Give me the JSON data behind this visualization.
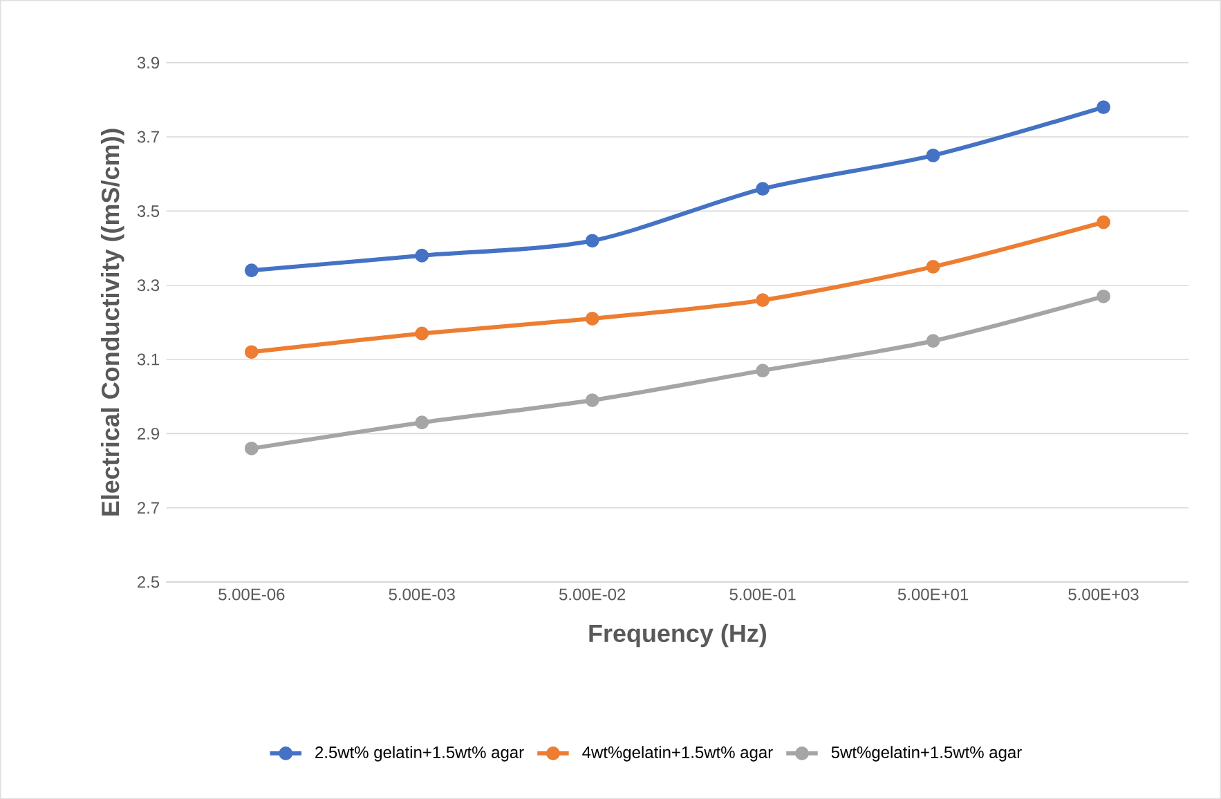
{
  "chart_data": {
    "type": "line",
    "xlabel": "Frequency (Hz)",
    "ylabel": "Electrical Conductivity ((mS/cm))",
    "categories": [
      "5.00E-06",
      "5.00E-03",
      "5.00E-02",
      "5.00E-01",
      "5.00E+01",
      "5.00E+03"
    ],
    "series": [
      {
        "name": "2.5wt% gelatin+1.5wt% agar",
        "color": "#4472c4",
        "values": [
          3.34,
          3.38,
          3.42,
          3.56,
          3.65,
          3.78
        ]
      },
      {
        "name": "4wt%gelatin+1.5wt% agar",
        "color": "#ed7d31",
        "values": [
          3.12,
          3.17,
          3.21,
          3.26,
          3.35,
          3.47
        ]
      },
      {
        "name": "5wt%gelatin+1.5wt% agar",
        "color": "#a5a5a5",
        "values": [
          2.86,
          2.93,
          2.99,
          3.07,
          3.15,
          3.27
        ]
      }
    ],
    "ylim": [
      2.5,
      3.9
    ],
    "yticks": [
      2.5,
      2.7,
      2.9,
      3.1,
      3.3,
      3.5,
      3.7,
      3.9
    ],
    "grid": "y",
    "legend": "bottom",
    "marker": "circle",
    "line_style": "solid"
  }
}
